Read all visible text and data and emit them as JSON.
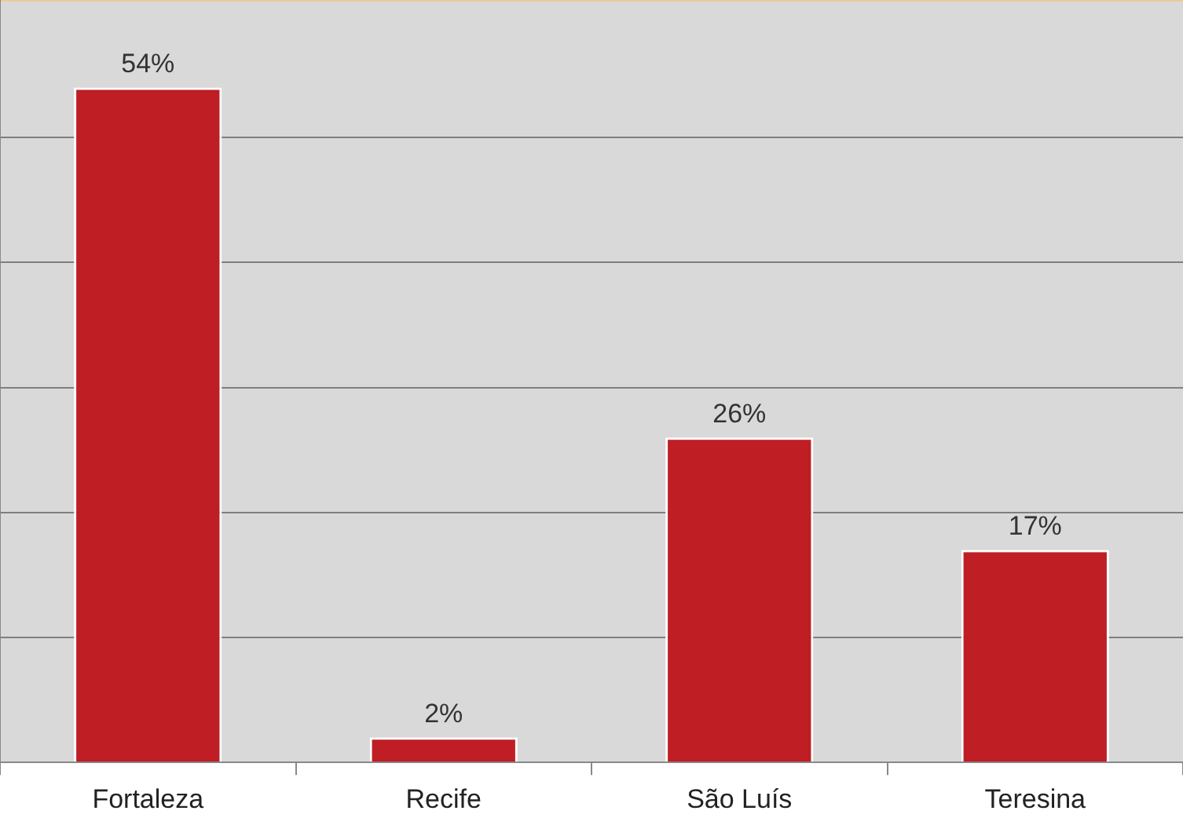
{
  "chart_data": {
    "type": "bar",
    "categories": [
      "Fortaleza",
      "Recife",
      "São Luís",
      "Teresina"
    ],
    "values": [
      54,
      2,
      26,
      17
    ],
    "color": "#be1e24",
    "value_labels": [
      "54%",
      "2%",
      "26%",
      "17%"
    ],
    "ylim": [
      0,
      61
    ],
    "yticks": [
      {
        "value": 0,
        "label": null
      },
      {
        "value": 10,
        "label": null
      },
      {
        "value": 20,
        "label": null
      },
      {
        "value": 30,
        "label": null
      },
      {
        "value": 40,
        "label": null
      },
      {
        "value": 50,
        "label": null
      }
    ],
    "grid": "y",
    "tick_labels": "x",
    "legend": false
  }
}
